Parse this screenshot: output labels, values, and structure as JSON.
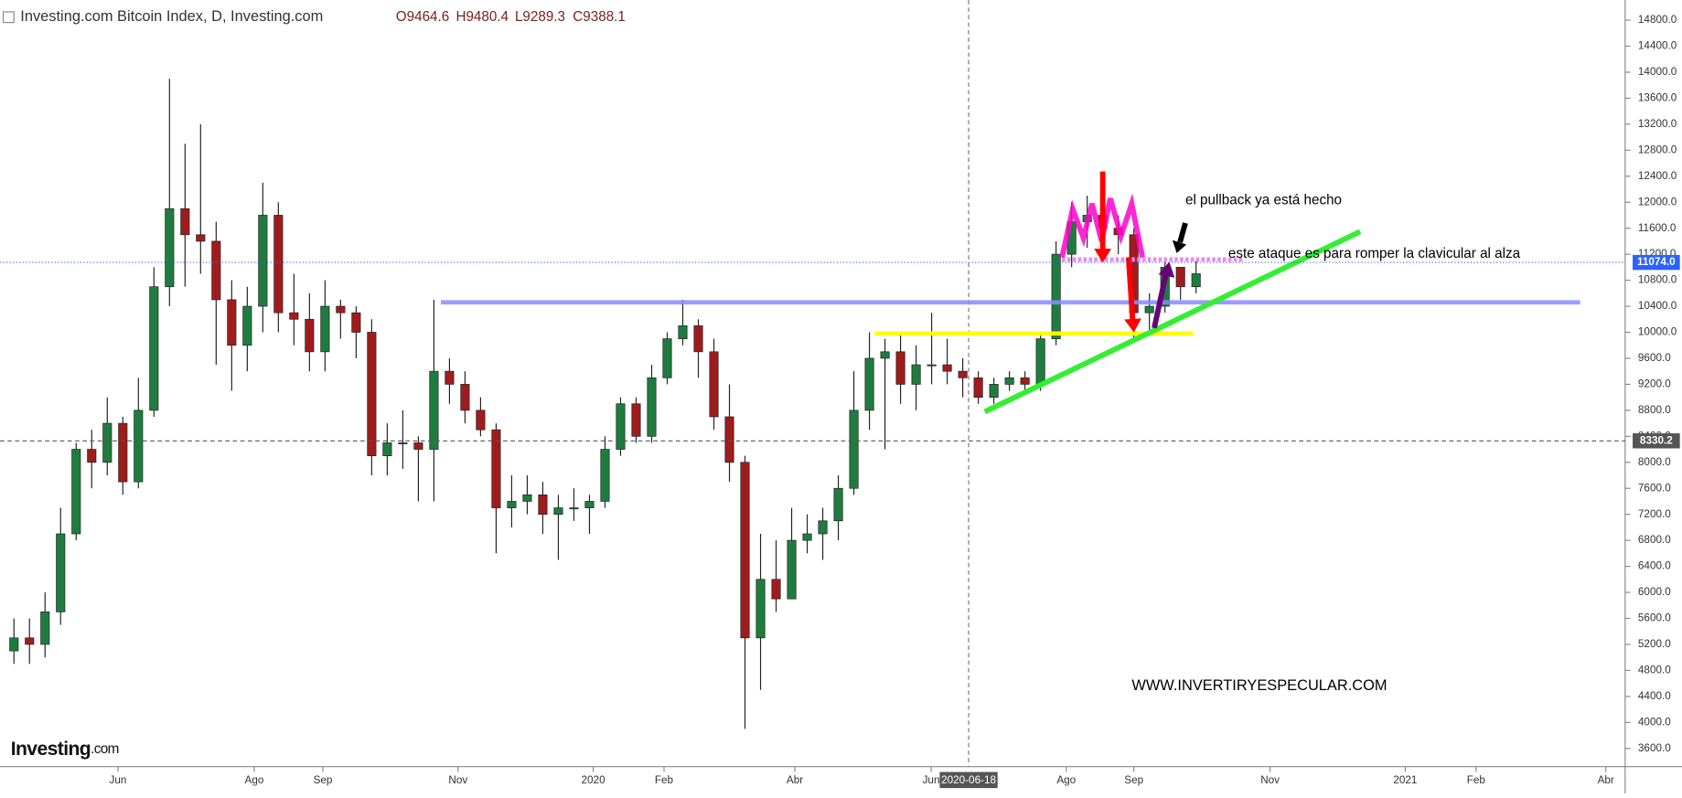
{
  "header": {
    "title": "Investing.com Bitcoin Index, D, Investing.com",
    "ohlc": [
      "O9464.6",
      "H9480.4",
      "L9289.3",
      "C9388.1"
    ]
  },
  "chart_data": {
    "type": "candlestick",
    "open": [
      5100,
      5300,
      5200,
      5700,
      6900,
      8200,
      8000,
      8600,
      7700,
      8800,
      10700,
      11900,
      11500,
      11400,
      10500,
      9800,
      10400,
      11800,
      10300,
      10200,
      9700,
      10400,
      10300,
      10000,
      8100,
      8300,
      8300,
      8200,
      9400,
      9200,
      8800,
      8500,
      7300,
      7400,
      7500,
      7200,
      7300,
      7300,
      7400,
      8200,
      8900,
      8400,
      9300,
      9900,
      10100,
      9700,
      8700,
      8000,
      5300,
      6200,
      5900,
      6800,
      6900,
      7100,
      7600,
      8800,
      9600,
      9700,
      9200,
      9500,
      9500,
      9400,
      9300,
      9000,
      9200,
      9300,
      9200,
      9900,
      11200,
      11700,
      11800,
      11600,
      11500,
      10300,
      10400,
      11000,
      10700
    ],
    "high": [
      5600,
      5600,
      6000,
      7300,
      8300,
      8500,
      9000,
      8700,
      9300,
      11000,
      13900,
      12900,
      13200,
      11700,
      10800,
      10700,
      12300,
      12000,
      10900,
      10600,
      10800,
      10500,
      10400,
      10200,
      8600,
      8800,
      8400,
      10500,
      9600,
      9400,
      9000,
      8600,
      7800,
      7800,
      7700,
      7500,
      7600,
      7500,
      8400,
      9000,
      9000,
      9500,
      10000,
      10500,
      10200,
      9900,
      9200,
      8100,
      6900,
      6800,
      7300,
      7200,
      7300,
      7800,
      9400,
      10000,
      9900,
      10000,
      9800,
      10300,
      9900,
      9600,
      9400,
      9300,
      9400,
      9400,
      10000,
      11400,
      12000,
      12100,
      12000,
      11800,
      11600,
      10600,
      11100,
      11000,
      11100
    ],
    "low": [
      4900,
      4900,
      5000,
      5500,
      6800,
      7600,
      7800,
      7500,
      7600,
      8700,
      10400,
      10700,
      10900,
      9500,
      9100,
      9400,
      10000,
      10000,
      9800,
      9400,
      9400,
      9900,
      9600,
      7800,
      7800,
      7900,
      7400,
      7400,
      8900,
      8600,
      8400,
      6600,
      7000,
      7200,
      6900,
      6500,
      7100,
      6900,
      7300,
      8100,
      8300,
      8300,
      9200,
      9800,
      9300,
      8500,
      7700,
      3900,
      4500,
      5700,
      5900,
      6600,
      6500,
      6800,
      7500,
      8500,
      8200,
      8900,
      8800,
      9200,
      9200,
      9000,
      8900,
      8900,
      9100,
      9100,
      9100,
      9800,
      11000,
      11300,
      11200,
      11200,
      9900,
      10000,
      10300,
      10500,
      10600
    ],
    "close": [
      5300,
      5200,
      5700,
      6900,
      8200,
      8000,
      8600,
      7700,
      8800,
      10700,
      11900,
      11500,
      11400,
      10500,
      9800,
      10400,
      11800,
      10300,
      10200,
      9700,
      10400,
      10300,
      10000,
      8100,
      8300,
      8300,
      8200,
      9400,
      9200,
      8800,
      8500,
      7300,
      7400,
      7500,
      7200,
      7300,
      7300,
      7400,
      8200,
      8900,
      8400,
      9300,
      9900,
      10100,
      9700,
      8700,
      8000,
      5300,
      6200,
      5900,
      6800,
      6900,
      7100,
      7600,
      8800,
      9600,
      9700,
      9200,
      9500,
      9500,
      9400,
      9300,
      9000,
      9200,
      9300,
      9200,
      9900,
      11200,
      11700,
      11800,
      11600,
      11500,
      10300,
      10400,
      11000,
      10700,
      10900
    ],
    "up_color": "#1e7d3e",
    "down_color": "#a01c1c",
    "ylim": [
      3320,
      15110
    ],
    "yticks": [
      {
        "value": 3600,
        "label": "3600.0"
      },
      {
        "value": 4000,
        "label": "4000.0"
      },
      {
        "value": 4400,
        "label": "4400.0"
      },
      {
        "value": 4800,
        "label": "4800.0"
      },
      {
        "value": 5200,
        "label": "5200.0"
      },
      {
        "value": 5600,
        "label": "5600.0"
      },
      {
        "value": 6000,
        "label": "6000.0"
      },
      {
        "value": 6400,
        "label": "6400.0"
      },
      {
        "value": 6800,
        "label": "6800.0"
      },
      {
        "value": 7200,
        "label": "7200.0"
      },
      {
        "value": 7600,
        "label": "7600.0"
      },
      {
        "value": 8000,
        "label": "8000.0"
      },
      {
        "value": 8400,
        "label": "8400.0"
      },
      {
        "value": 8800,
        "label": "8800.0"
      },
      {
        "value": 9200,
        "label": "9200.0"
      },
      {
        "value": 9600,
        "label": "9600.0"
      },
      {
        "value": 10000,
        "label": "10000.0"
      },
      {
        "value": 10400,
        "label": "10400.0"
      },
      {
        "value": 10800,
        "label": "10800.0"
      },
      {
        "value": 11200,
        "label": "11200.0"
      },
      {
        "value": 11600,
        "label": "11600.0"
      },
      {
        "value": 12000,
        "label": "12000.0"
      },
      {
        "value": 12400,
        "label": "12400.0"
      },
      {
        "value": 12800,
        "label": "12800.0"
      },
      {
        "value": 13200,
        "label": "13200.0"
      },
      {
        "value": 13600,
        "label": "13600.0"
      },
      {
        "value": 14000,
        "label": "14000.0"
      },
      {
        "value": 14400,
        "label": "14400.0"
      },
      {
        "value": 14800,
        "label": "14800.0"
      }
    ],
    "x_labels": [
      "Jun",
      "Ago",
      "Sep",
      "Nov",
      "2020",
      "Feb",
      "Abr",
      "Jun",
      "Ago",
      "Sep",
      "Nov",
      "2021",
      "Feb",
      "Abr"
    ],
    "crosshair_label": "2020-06-18",
    "price_markers": [
      {
        "value": 11074,
        "label": "11074.0",
        "color": "#2962ff"
      },
      {
        "value": 8330.2,
        "label": "8330.2",
        "color": "#555555"
      }
    ]
  },
  "annotations": {
    "pullback": "el pullback ya está hecho",
    "attack": "este ataque es para romper la clavicular al alza",
    "site": "WWW.INVERTIRYESPECULAR.COM",
    "logo": "Investing",
    "logo_suffix": ".com"
  }
}
